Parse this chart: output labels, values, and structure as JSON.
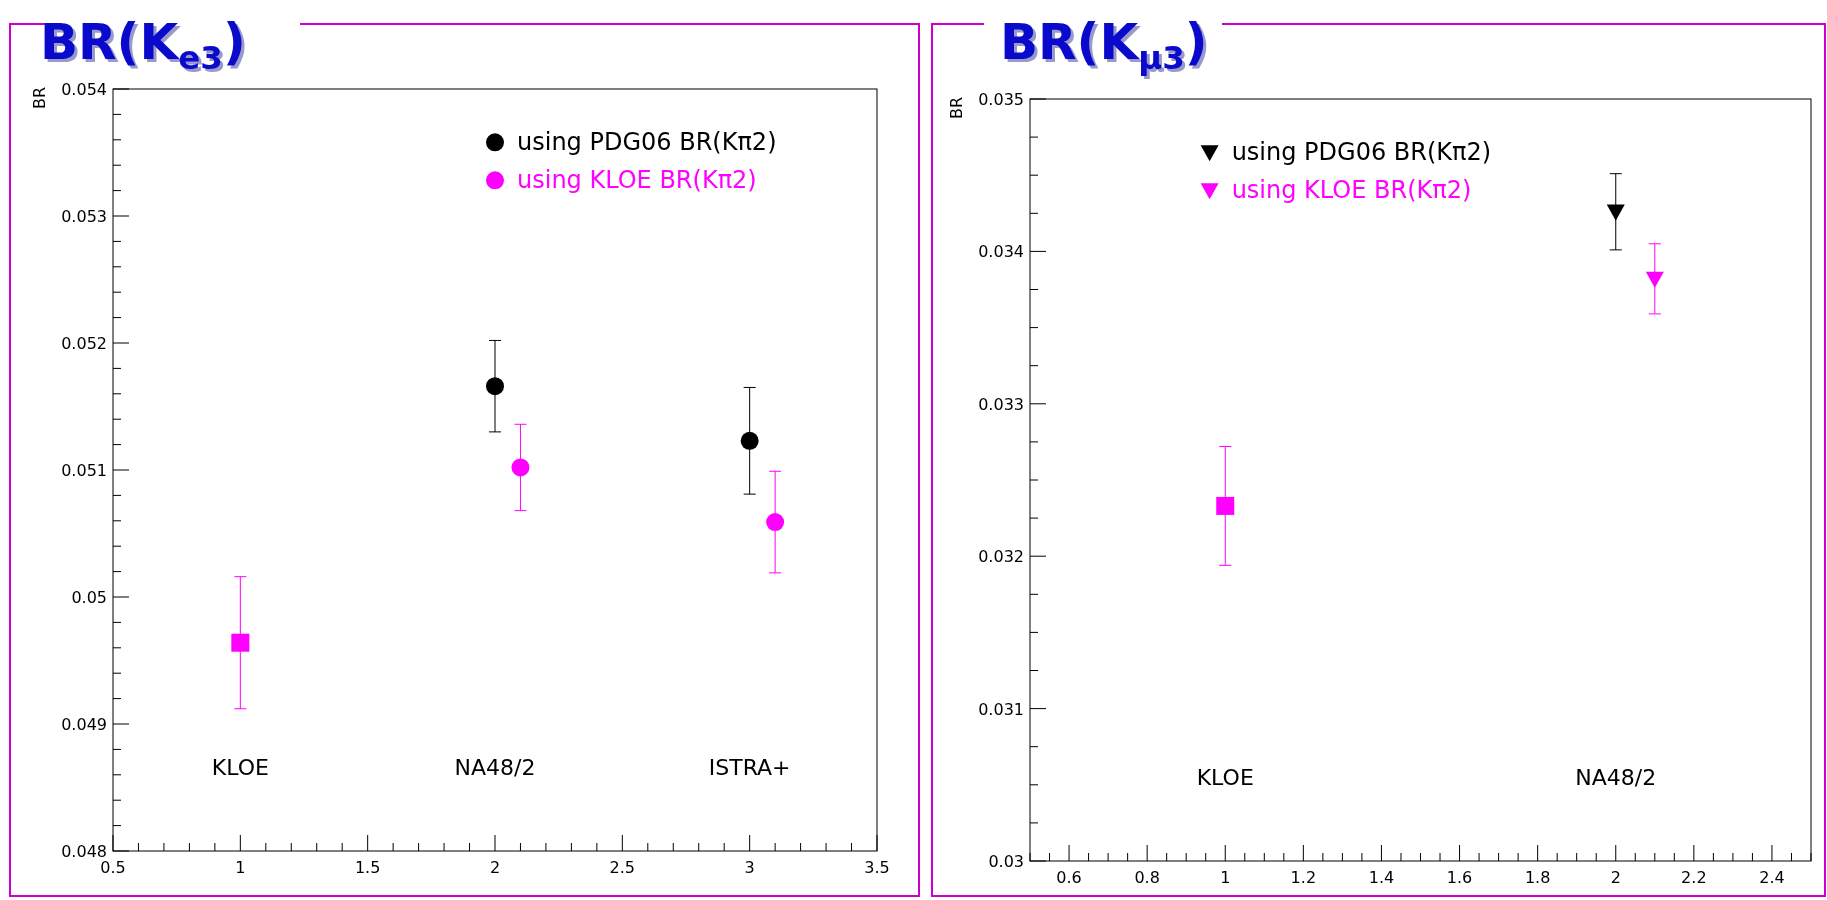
{
  "chart_data": [
    {
      "type": "scatter",
      "title": "BR(K$_{e3}$)",
      "ylabel": "BR",
      "xlim": [
        0.5,
        3.5
      ],
      "ylim": [
        0.048,
        0.054
      ],
      "xticks": [
        0.5,
        {
          "value": 0.6,
          "label": null
        },
        {
          "value": 0.7,
          "label": null
        },
        {
          "value": 0.8,
          "label": null
        },
        {
          "value": 0.9,
          "label": null
        },
        1,
        {
          "value": 1.1,
          "label": null
        },
        {
          "value": 1.2,
          "label": null
        },
        {
          "value": 1.3,
          "label": null
        },
        {
          "value": 1.4,
          "label": null
        },
        1.5,
        {
          "value": 1.6,
          "label": null
        },
        {
          "value": 1.7,
          "label": null
        },
        {
          "value": 1.8,
          "label": null
        },
        {
          "value": 1.9,
          "label": null
        },
        2,
        {
          "value": 2.1,
          "label": null
        },
        {
          "value": 2.2,
          "label": null
        },
        {
          "value": 2.3,
          "label": null
        },
        {
          "value": 2.4,
          "label": null
        },
        2.5,
        {
          "value": 2.6,
          "label": null
        },
        {
          "value": 2.7,
          "label": null
        },
        {
          "value": 2.8,
          "label": null
        },
        {
          "value": 2.9,
          "label": null
        },
        3,
        {
          "value": 3.1,
          "label": null
        },
        {
          "value": 3.2,
          "label": null
        },
        {
          "value": 3.3,
          "label": null
        },
        {
          "value": 3.4,
          "label": null
        },
        3.5
      ],
      "yticks": [
        0.048,
        {
          "value": 0.0482,
          "label": null
        },
        {
          "value": 0.0484,
          "label": null
        },
        {
          "value": 0.0486,
          "label": null
        },
        {
          "value": 0.0488,
          "label": null
        },
        0.049,
        {
          "value": 0.0492,
          "label": null
        },
        {
          "value": 0.0494,
          "label": null
        },
        {
          "value": 0.0496,
          "label": null
        },
        {
          "value": 0.0498,
          "label": null
        },
        0.05,
        {
          "value": 0.0502,
          "label": null
        },
        {
          "value": 0.0504,
          "label": null
        },
        {
          "value": 0.0506,
          "label": null
        },
        {
          "value": 0.0508,
          "label": null
        },
        0.051,
        {
          "value": 0.0512,
          "label": null
        },
        {
          "value": 0.0514,
          "label": null
        },
        {
          "value": 0.0516,
          "label": null
        },
        {
          "value": 0.0518,
          "label": null
        },
        0.052,
        {
          "value": 0.0522,
          "label": null
        },
        {
          "value": 0.0524,
          "label": null
        },
        {
          "value": 0.0526,
          "label": null
        },
        {
          "value": 0.0528,
          "label": null
        },
        0.053,
        {
          "value": 0.0532,
          "label": null
        },
        {
          "value": 0.0534,
          "label": null
        },
        {
          "value": 0.0536,
          "label": null
        },
        {
          "value": 0.0538,
          "label": null
        },
        0.054
      ],
      "legend": "top right",
      "grid": false,
      "series": [
        {
          "name": "using PDG06 BR(Kπ2)",
          "color": "#000000",
          "marker": "circle",
          "x": [
            2,
            3
          ],
          "values": [
            0.05166,
            0.05123
          ],
          "errors": [
            0.00036,
            0.00042
          ]
        },
        {
          "name": "using KLOE BR(Kπ2)",
          "color": "#ff00ff",
          "marker": "circle",
          "x": [
            2.1,
            3.1
          ],
          "values": [
            0.05102,
            0.05059
          ],
          "errors": [
            0.00034,
            0.0004
          ]
        },
        {
          "color": "#ff00ff",
          "marker": "square",
          "x": [
            1
          ],
          "values": [
            0.04964
          ],
          "errors": [
            0.00052
          ]
        }
      ],
      "annotations": [
        "KLOE",
        "NA48/2",
        "ISTRA+"
      ]
    },
    {
      "type": "scatter",
      "title": "BR(K$_{μ3}$)",
      "ylabel": "BR",
      "xlim": [
        0.5,
        2.5
      ],
      "ylim": [
        0.03,
        0.035
      ],
      "xticks": [
        {
          "value": 0.5,
          "label": null
        },
        {
          "value": 0.55,
          "label": null
        },
        0.6,
        {
          "value": 0.65,
          "label": null
        },
        {
          "value": 0.7,
          "label": null
        },
        {
          "value": 0.75,
          "label": null
        },
        0.8,
        {
          "value": 0.85,
          "label": null
        },
        {
          "value": 0.9,
          "label": null
        },
        {
          "value": 0.95,
          "label": null
        },
        1,
        {
          "value": 1.05,
          "label": null
        },
        {
          "value": 1.1,
          "label": null
        },
        {
          "value": 1.15,
          "label": null
        },
        1.2,
        {
          "value": 1.25,
          "label": null
        },
        {
          "value": 1.3,
          "label": null
        },
        {
          "value": 1.35,
          "label": null
        },
        1.4,
        {
          "value": 1.45,
          "label": null
        },
        {
          "value": 1.5,
          "label": null
        },
        {
          "value": 1.55,
          "label": null
        },
        1.6,
        {
          "value": 1.65,
          "label": null
        },
        {
          "value": 1.7,
          "label": null
        },
        {
          "value": 1.75,
          "label": null
        },
        1.8,
        {
          "value": 1.85,
          "label": null
        },
        {
          "value": 1.9,
          "label": null
        },
        {
          "value": 1.95,
          "label": null
        },
        2,
        {
          "value": 2.05,
          "label": null
        },
        {
          "value": 2.1,
          "label": null
        },
        {
          "value": 2.15,
          "label": null
        },
        2.2,
        {
          "value": 2.25,
          "label": null
        },
        {
          "value": 2.3,
          "label": null
        },
        {
          "value": 2.35,
          "label": null
        },
        2.4,
        {
          "value": 2.45,
          "label": null
        },
        {
          "value": 2.5,
          "label": null
        }
      ],
      "yticks": [
        0.03,
        {
          "value": 0.03025,
          "label": null
        },
        {
          "value": 0.0305,
          "label": null
        },
        {
          "value": 0.03075,
          "label": null
        },
        0.031,
        {
          "value": 0.03125,
          "label": null
        },
        {
          "value": 0.0315,
          "label": null
        },
        {
          "value": 0.03175,
          "label": null
        },
        0.032,
        {
          "value": 0.03225,
          "label": null
        },
        {
          "value": 0.0325,
          "label": null
        },
        {
          "value": 0.03275,
          "label": null
        },
        0.033,
        {
          "value": 0.03325,
          "label": null
        },
        {
          "value": 0.0335,
          "label": null
        },
        {
          "value": 0.03375,
          "label": null
        },
        0.034,
        {
          "value": 0.03425,
          "label": null
        },
        {
          "value": 0.0345,
          "label": null
        },
        {
          "value": 0.03475,
          "label": null
        },
        0.035
      ],
      "legend": "top",
      "grid": false,
      "series": [
        {
          "name": "using PDG06 BR(Kπ2)",
          "color": "#000000",
          "marker": "triangle",
          "x": [
            2
          ],
          "values": [
            0.03426
          ],
          "errors": [
            0.00025
          ]
        },
        {
          "name": "using KLOE BR(Kπ2)",
          "color": "#ff00ff",
          "marker": "triangle",
          "x": [
            2.1
          ],
          "values": [
            0.03382
          ],
          "errors": [
            0.00023
          ]
        },
        {
          "color": "#ff00ff",
          "marker": "square",
          "x": [
            1
          ],
          "values": [
            0.03233
          ],
          "errors": [
            0.00039
          ]
        }
      ],
      "annotations": [
        "KLOE",
        "NA48/2"
      ]
    }
  ]
}
